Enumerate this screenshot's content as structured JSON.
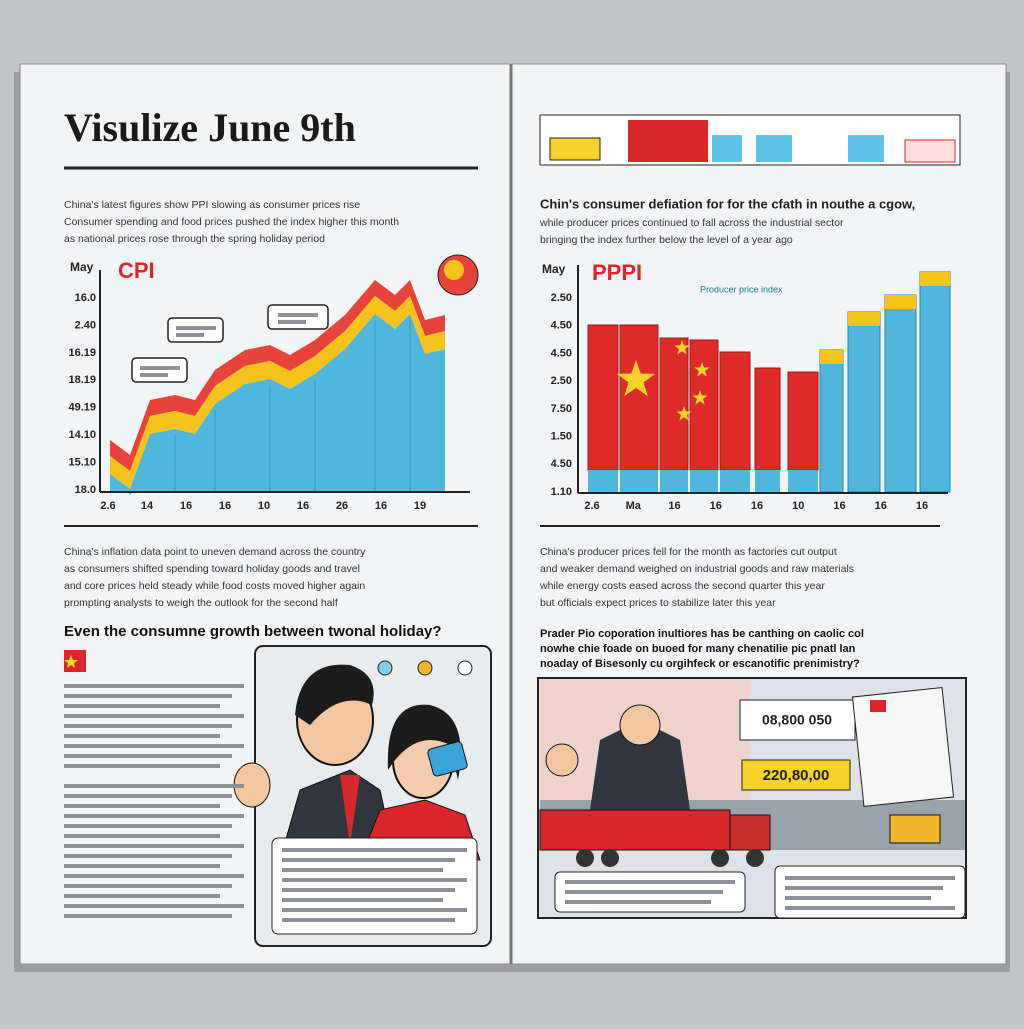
{
  "left": {
    "title": "Visulize June 9th",
    "intro": [
      "China's latest figures show PPI slowing as consumer prices rise",
      "Consumer spending and food prices pushed the index higher this month",
      "as national prices rose through the spring holiday period"
    ],
    "chart": {
      "month": "May",
      "label": "CPI",
      "yticks": [
        "16.0",
        "2.40",
        "16.19",
        "18.19",
        "49.19",
        "14.10",
        "15.10",
        "18.0"
      ],
      "xticks": [
        "2.6",
        "14",
        "16",
        "16",
        "10",
        "16",
        "26",
        "16",
        "19"
      ]
    },
    "body": [
      "China's inflation data point to uneven demand across the country",
      "as consumers shifted spending toward holiday goods and travel",
      "and core prices held steady while food costs moved higher again",
      "prompting analysts to weigh the outlook for the second half"
    ],
    "headline": "Even the consumne growth between twonal holiday?"
  },
  "right": {
    "intro": [
      "Chin's consumer defiation for for the cfath in nouthe a cgow,",
      "while producer prices continued to fall across the industrial sector",
      "bringing the index further below the level of a year ago"
    ],
    "chart": {
      "month": "May",
      "label": "PPPI",
      "note": "Producer price index",
      "yticks": [
        "2.50",
        "4.50",
        "4.50",
        "2.50",
        "7.50",
        "1.50",
        "4.50",
        "1.10"
      ],
      "xticks": [
        "2.6",
        "Ma",
        "16",
        "16",
        "16",
        "10",
        "16",
        "16",
        "16"
      ]
    },
    "body": [
      "China's producer prices fell for the month as factories cut output",
      "and weaker demand weighed on industrial goods and raw materials",
      "while energy costs eased across the second quarter this year",
      "but officials expect prices to stabilize later this year"
    ],
    "headline": [
      "Prader Pio coporation inultiores has be canthing on caolic col",
      "nowhe chie foade on buoed for many chenatilie pic pnatl lan",
      "noaday of Bisesonly cu orgihfeck or escanotific prenimistry?"
    ],
    "prices": [
      "08,800 050",
      "220,80,00"
    ]
  }
}
